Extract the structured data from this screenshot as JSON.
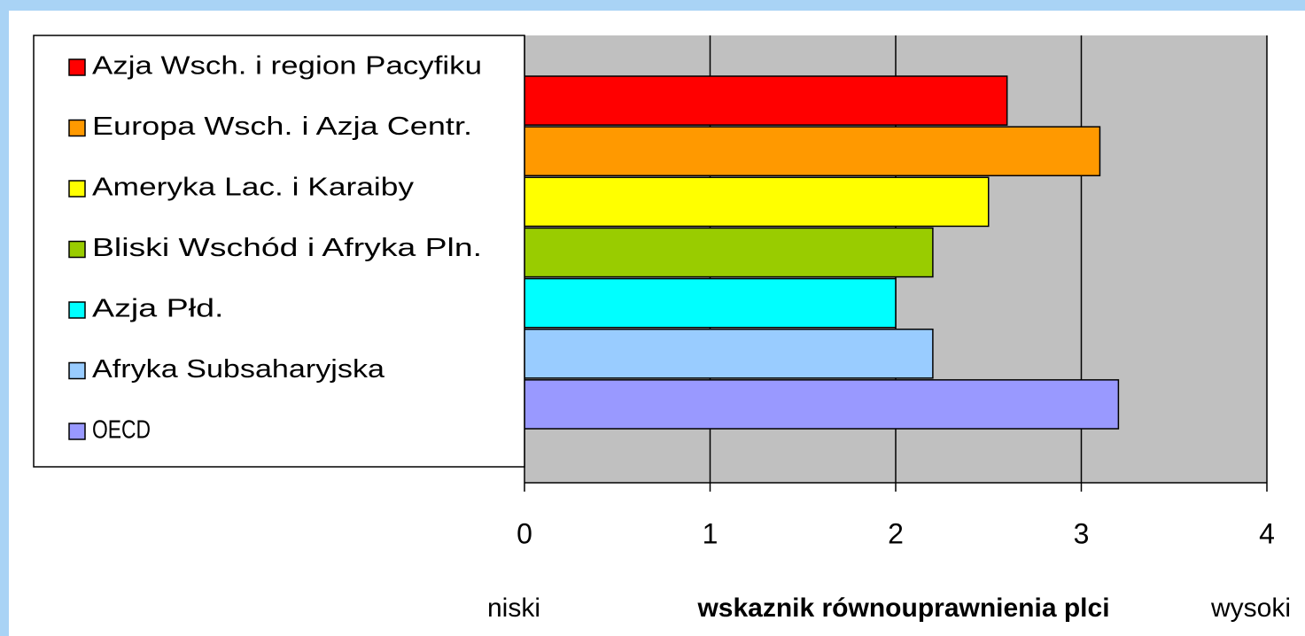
{
  "chart_data": {
    "type": "bar",
    "orientation": "horizontal",
    "series": [
      {
        "name": "Azja Wsch. i region Pacyfiku",
        "color": "#ff0000",
        "values": [
          2.6
        ]
      },
      {
        "name": "Europa Wsch. i Azja Centr.",
        "color": "#ff9900",
        "values": [
          3.1
        ]
      },
      {
        "name": "Ameryka Lac. i Karaiby",
        "color": "#ffff00",
        "values": [
          2.5
        ]
      },
      {
        "name": "Bliski Wschód i Afryka Pln.",
        "color": "#99cc00",
        "values": [
          2.2
        ]
      },
      {
        "name": "Azja Płd.",
        "color": "#00ffff",
        "values": [
          2.0
        ]
      },
      {
        "name": "Afryka Subsaharyjska",
        "color": "#99ccff",
        "values": [
          2.2
        ]
      },
      {
        "name": "OECD",
        "color": "#9999ff",
        "values": [
          3.2
        ]
      }
    ],
    "xlim": [
      0,
      4
    ],
    "xticks": [
      0,
      1,
      2,
      3,
      4
    ],
    "grid": true,
    "xlabel": "wskaznik równouprawnienia plci",
    "annotations": [
      "niski",
      "wysoki"
    ],
    "legend": "left"
  }
}
